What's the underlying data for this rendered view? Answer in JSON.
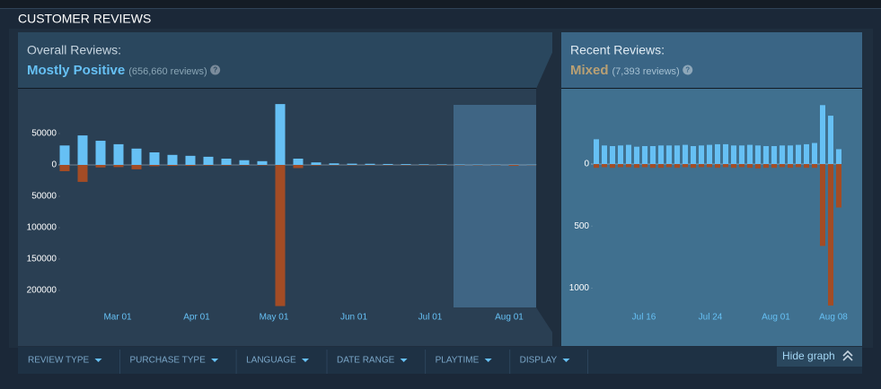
{
  "header": {
    "title": "CUSTOMER REVIEWS"
  },
  "overall": {
    "label": "Overall Reviews:",
    "summary": "Mostly Positive",
    "count": "(656,660 reviews)",
    "help": "?"
  },
  "recent": {
    "label": "Recent Reviews:",
    "summary": "Mixed",
    "count": "(7,393 reviews)",
    "help": "?"
  },
  "filters": [
    "REVIEW TYPE",
    "PURCHASE TYPE",
    "LANGUAGE",
    "DATE RANGE",
    "PLAYTIME",
    "DISPLAY"
  ],
  "hide_button": "Hide graph",
  "chart_data": [
    {
      "type": "bar",
      "categories": [
        null,
        null,
        null,
        null,
        null,
        null,
        null,
        null,
        null,
        null,
        null,
        null,
        null,
        null,
        null,
        null,
        null,
        null,
        null,
        null,
        null,
        null,
        null,
        null,
        null,
        null,
        null
      ],
      "xtick_labels": [
        "Mar 01",
        "Apr 01",
        "May 01",
        "Jun 01",
        "Jul 01",
        "Aug 01"
      ],
      "series": [
        {
          "color": "#66c0f4",
          "values": [
            31000,
            47000,
            38500,
            33000,
            26000,
            20000,
            16000,
            14500,
            13000,
            10000,
            7500,
            6000,
            97000,
            10000,
            4000,
            2500,
            2000,
            1800,
            1500,
            1300,
            1000,
            900,
            800,
            700,
            600,
            500,
            400
          ]
        },
        {
          "color": "#a34c25",
          "values": [
            -10000,
            -27000,
            -4000,
            -3500,
            -7000,
            -2000,
            -1500,
            -1500,
            -1000,
            -1000,
            -800,
            -800,
            -225000,
            -5000,
            -1000,
            -500,
            -500,
            -500,
            -500,
            -500,
            -500,
            -500,
            -500,
            -500,
            -500,
            -1500,
            -300
          ]
        }
      ],
      "ylim": [
        -230000,
        120000
      ],
      "yticks": [
        50000,
        0,
        {
          "value": -50000,
          "label": "50000"
        },
        {
          "value": -100000,
          "label": "100000"
        },
        {
          "value": -150000,
          "label": "150000"
        },
        {
          "value": -200000,
          "label": "200000"
        }
      ]
    },
    {
      "type": "bar",
      "categories": [
        null,
        null,
        null,
        null,
        null,
        null,
        null,
        null,
        null,
        null,
        null,
        null,
        null,
        null,
        null,
        null,
        null,
        null,
        null,
        null,
        null,
        null,
        null,
        null,
        null,
        null,
        null,
        null,
        null,
        null,
        null
      ],
      "xtick_labels": [
        "Jul 16",
        "Jul 24",
        "Aug 01",
        "Aug 08"
      ],
      "series": [
        {
          "color": "#66c0f4",
          "values": [
            200,
            150,
            145,
            150,
            155,
            140,
            145,
            145,
            150,
            150,
            150,
            155,
            145,
            150,
            155,
            160,
            160,
            150,
            150,
            155,
            150,
            145,
            145,
            150,
            150,
            155,
            160,
            170,
            475,
            390,
            120
          ]
        },
        {
          "color": "#a34c25",
          "values": [
            -30,
            -25,
            -30,
            -25,
            -25,
            -30,
            -25,
            -30,
            -30,
            -25,
            -30,
            -25,
            -30,
            -25,
            -25,
            -30,
            -25,
            -30,
            -25,
            -30,
            -35,
            -30,
            -30,
            -25,
            -30,
            -25,
            -30,
            -30,
            -660,
            -1140,
            -350
          ]
        }
      ],
      "ylim": [
        -1170,
        600
      ],
      "yticks": [
        0,
        {
          "value": -500,
          "label": "500"
        },
        {
          "value": -1000,
          "label": "1000"
        }
      ]
    }
  ]
}
